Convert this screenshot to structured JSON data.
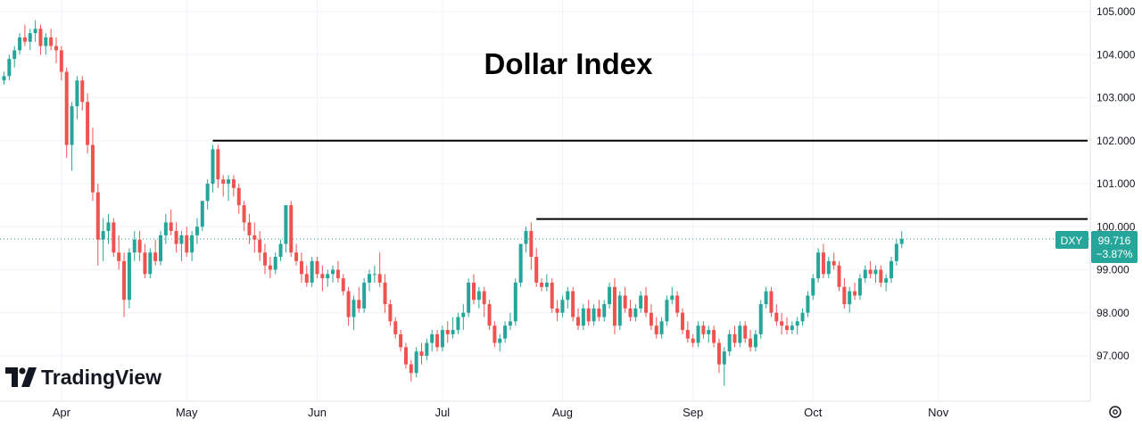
{
  "chart_data": {
    "type": "candlestick",
    "title": "Dollar Index",
    "symbol": "DXY",
    "last_price": "99.716",
    "change_percent": "−3.87%",
    "watermark": "TradingView",
    "y_ticks": [
      "105.000",
      "104.000",
      "103.000",
      "102.000",
      "101.000",
      "100.000",
      "99.000",
      "98.000",
      "97.000"
    ],
    "ylim": [
      96.2,
      105.3
    ],
    "x_tick_labels": [
      "Apr",
      "May",
      "Jun",
      "Jul",
      "Aug",
      "Sep",
      "Oct",
      "Nov"
    ],
    "x_tick_index": [
      11,
      35,
      60,
      84,
      107,
      132,
      155,
      179
    ],
    "horizontal_lines": [
      {
        "y": 102.0,
        "from_index": 40
      },
      {
        "y": 100.18,
        "from_index": 102
      }
    ],
    "candles": [
      [
        103.4,
        103.6,
        103.3,
        103.5
      ],
      [
        103.5,
        104.0,
        103.4,
        103.9
      ],
      [
        103.9,
        104.2,
        103.7,
        104.1
      ],
      [
        104.1,
        104.5,
        104.0,
        104.4
      ],
      [
        104.4,
        104.7,
        104.2,
        104.3
      ],
      [
        104.3,
        104.6,
        104.1,
        104.5
      ],
      [
        104.5,
        104.8,
        104.3,
        104.6
      ],
      [
        104.6,
        104.7,
        104.0,
        104.2
      ],
      [
        104.2,
        104.5,
        104.0,
        104.4
      ],
      [
        104.4,
        104.6,
        104.1,
        104.2
      ],
      [
        104.2,
        104.4,
        103.8,
        104.1
      ],
      [
        104.1,
        104.2,
        103.4,
        103.6
      ],
      [
        103.6,
        103.7,
        101.6,
        101.9
      ],
      [
        101.9,
        102.9,
        101.3,
        102.8
      ],
      [
        102.8,
        103.5,
        102.5,
        103.4
      ],
      [
        103.4,
        103.5,
        102.7,
        102.9
      ],
      [
        102.9,
        103.1,
        101.7,
        101.9
      ],
      [
        101.9,
        102.3,
        100.6,
        100.8
      ],
      [
        100.8,
        101.0,
        99.1,
        99.7
      ],
      [
        99.7,
        100.2,
        99.2,
        99.9
      ],
      [
        99.9,
        100.3,
        99.6,
        100.1
      ],
      [
        100.1,
        100.2,
        99.3,
        99.4
      ],
      [
        99.4,
        99.8,
        99.0,
        99.2
      ],
      [
        99.2,
        99.4,
        97.9,
        98.3
      ],
      [
        98.3,
        99.5,
        98.1,
        99.4
      ],
      [
        99.4,
        99.9,
        99.2,
        99.7
      ],
      [
        99.7,
        99.9,
        99.2,
        99.4
      ],
      [
        99.4,
        99.6,
        98.8,
        98.9
      ],
      [
        98.9,
        99.5,
        98.8,
        99.4
      ],
      [
        99.4,
        99.7,
        99.1,
        99.2
      ],
      [
        99.2,
        99.9,
        99.1,
        99.8
      ],
      [
        99.8,
        100.3,
        99.6,
        100.1
      ],
      [
        100.1,
        100.4,
        99.8,
        99.9
      ],
      [
        99.9,
        100.1,
        99.4,
        99.6
      ],
      [
        99.6,
        99.9,
        99.2,
        99.8
      ],
      [
        99.8,
        100.0,
        99.3,
        99.4
      ],
      [
        99.4,
        99.9,
        99.2,
        99.8
      ],
      [
        99.8,
        100.2,
        99.6,
        100.0
      ],
      [
        100.0,
        100.6,
        99.9,
        100.6
      ],
      [
        100.6,
        101.1,
        100.4,
        101.0
      ],
      [
        101.0,
        101.9,
        100.8,
        101.8
      ],
      [
        101.8,
        101.9,
        100.9,
        101.1
      ],
      [
        101.1,
        101.2,
        100.7,
        101.0
      ],
      [
        101.0,
        101.2,
        100.6,
        101.1
      ],
      [
        101.1,
        101.2,
        100.7,
        100.9
      ],
      [
        100.9,
        101.0,
        100.3,
        100.5
      ],
      [
        100.5,
        100.6,
        99.9,
        100.1
      ],
      [
        100.1,
        100.3,
        99.6,
        99.8
      ],
      [
        99.8,
        100.1,
        99.4,
        99.7
      ],
      [
        99.7,
        99.9,
        99.2,
        99.4
      ],
      [
        99.4,
        99.6,
        98.9,
        99.1
      ],
      [
        99.1,
        99.3,
        98.8,
        99.0
      ],
      [
        99.0,
        99.4,
        98.9,
        99.3
      ],
      [
        99.3,
        99.7,
        99.2,
        99.6
      ],
      [
        99.6,
        100.5,
        99.4,
        100.5
      ],
      [
        100.5,
        100.6,
        99.3,
        99.4
      ],
      [
        99.4,
        99.6,
        99.1,
        99.2
      ],
      [
        99.2,
        99.4,
        98.7,
        98.9
      ],
      [
        98.9,
        99.1,
        98.6,
        98.7
      ],
      [
        98.7,
        99.3,
        98.6,
        99.2
      ],
      [
        99.2,
        99.3,
        98.8,
        98.9
      ],
      [
        98.9,
        99.1,
        98.5,
        98.8
      ],
      [
        98.8,
        99.0,
        98.6,
        98.9
      ],
      [
        98.9,
        99.1,
        98.7,
        99.0
      ],
      [
        99.0,
        99.2,
        98.7,
        98.8
      ],
      [
        98.8,
        98.9,
        98.4,
        98.5
      ],
      [
        98.5,
        98.6,
        97.7,
        97.9
      ],
      [
        97.9,
        98.4,
        97.6,
        98.3
      ],
      [
        98.3,
        98.6,
        98.0,
        98.1
      ],
      [
        98.1,
        98.8,
        98.0,
        98.7
      ],
      [
        98.7,
        99.0,
        98.5,
        98.9
      ],
      [
        98.9,
        99.1,
        98.7,
        98.9
      ],
      [
        98.9,
        99.4,
        98.6,
        98.7
      ],
      [
        98.7,
        98.9,
        98.0,
        98.2
      ],
      [
        98.2,
        98.3,
        97.7,
        97.8
      ],
      [
        97.8,
        97.9,
        97.4,
        97.5
      ],
      [
        97.5,
        97.6,
        97.1,
        97.2
      ],
      [
        97.2,
        97.3,
        96.7,
        96.8
      ],
      [
        96.8,
        96.9,
        96.4,
        96.6
      ],
      [
        96.6,
        97.2,
        96.5,
        97.1
      ],
      [
        97.1,
        97.3,
        96.8,
        97.0
      ],
      [
        97.0,
        97.4,
        96.9,
        97.3
      ],
      [
        97.3,
        97.6,
        97.1,
        97.5
      ],
      [
        97.5,
        97.6,
        97.1,
        97.2
      ],
      [
        97.2,
        97.7,
        97.1,
        97.6
      ],
      [
        97.6,
        97.8,
        97.3,
        97.5
      ],
      [
        97.5,
        97.9,
        97.4,
        97.6
      ],
      [
        97.6,
        98.0,
        97.5,
        97.9
      ],
      [
        97.9,
        98.2,
        97.6,
        98.0
      ],
      [
        98.0,
        98.8,
        97.9,
        98.7
      ],
      [
        98.7,
        98.9,
        98.2,
        98.3
      ],
      [
        98.3,
        98.6,
        98.1,
        98.5
      ],
      [
        98.5,
        98.6,
        97.9,
        98.2
      ],
      [
        98.2,
        98.3,
        97.6,
        97.7
      ],
      [
        97.7,
        97.8,
        97.2,
        97.3
      ],
      [
        97.3,
        97.5,
        97.1,
        97.4
      ],
      [
        97.4,
        97.8,
        97.3,
        97.7
      ],
      [
        97.7,
        98.0,
        97.6,
        97.8
      ],
      [
        97.8,
        98.8,
        97.7,
        98.7
      ],
      [
        98.7,
        99.6,
        98.6,
        99.6
      ],
      [
        99.6,
        100.0,
        99.4,
        99.9
      ],
      [
        99.9,
        100.1,
        99.0,
        99.3
      ],
      [
        99.3,
        99.5,
        98.6,
        98.7
      ],
      [
        98.7,
        98.8,
        98.5,
        98.6
      ],
      [
        98.6,
        98.9,
        98.5,
        98.7
      ],
      [
        98.7,
        98.8,
        98.0,
        98.1
      ],
      [
        98.1,
        98.3,
        97.8,
        98.0
      ],
      [
        98.0,
        98.4,
        97.9,
        98.3
      ],
      [
        98.3,
        98.6,
        98.1,
        98.5
      ],
      [
        98.5,
        98.6,
        97.8,
        97.9
      ],
      [
        97.9,
        98.1,
        97.6,
        97.7
      ],
      [
        97.7,
        98.2,
        97.6,
        98.1
      ],
      [
        98.1,
        98.3,
        97.7,
        97.8
      ],
      [
        97.8,
        98.2,
        97.7,
        98.1
      ],
      [
        98.1,
        98.3,
        97.8,
        97.9
      ],
      [
        97.9,
        98.3,
        97.8,
        98.2
      ],
      [
        98.2,
        98.7,
        98.1,
        98.6
      ],
      [
        98.6,
        98.8,
        97.5,
        97.7
      ],
      [
        97.7,
        98.5,
        97.6,
        98.4
      ],
      [
        98.4,
        98.6,
        98.0,
        98.1
      ],
      [
        98.1,
        98.3,
        97.8,
        97.9
      ],
      [
        97.9,
        98.2,
        97.8,
        98.1
      ],
      [
        98.1,
        98.5,
        98.0,
        98.4
      ],
      [
        98.4,
        98.6,
        97.9,
        98.0
      ],
      [
        98.0,
        98.2,
        97.6,
        97.7
      ],
      [
        97.7,
        97.9,
        97.4,
        97.5
      ],
      [
        97.5,
        97.9,
        97.4,
        97.8
      ],
      [
        97.8,
        98.4,
        97.7,
        98.3
      ],
      [
        98.3,
        98.6,
        98.2,
        98.4
      ],
      [
        98.4,
        98.5,
        97.9,
        98.0
      ],
      [
        98.0,
        98.1,
        97.5,
        97.6
      ],
      [
        97.6,
        97.8,
        97.3,
        97.4
      ],
      [
        97.4,
        97.5,
        97.2,
        97.3
      ],
      [
        97.3,
        97.8,
        97.2,
        97.7
      ],
      [
        97.7,
        97.8,
        97.4,
        97.5
      ],
      [
        97.5,
        97.7,
        97.3,
        97.6
      ],
      [
        97.6,
        97.7,
        97.2,
        97.3
      ],
      [
        97.3,
        97.4,
        96.6,
        96.8
      ],
      [
        96.8,
        97.2,
        96.3,
        97.1
      ],
      [
        97.1,
        97.6,
        97.0,
        97.5
      ],
      [
        97.5,
        97.7,
        97.2,
        97.3
      ],
      [
        97.3,
        97.8,
        97.2,
        97.7
      ],
      [
        97.7,
        97.8,
        97.3,
        97.4
      ],
      [
        97.4,
        97.6,
        97.1,
        97.2
      ],
      [
        97.2,
        97.6,
        97.1,
        97.5
      ],
      [
        97.5,
        98.3,
        97.4,
        98.2
      ],
      [
        98.2,
        98.6,
        98.1,
        98.5
      ],
      [
        98.5,
        98.6,
        97.9,
        98.0
      ],
      [
        98.0,
        98.2,
        97.7,
        97.8
      ],
      [
        97.8,
        98.0,
        97.5,
        97.7
      ],
      [
        97.7,
        97.9,
        97.5,
        97.6
      ],
      [
        97.6,
        97.8,
        97.5,
        97.7
      ],
      [
        97.7,
        97.9,
        97.5,
        97.8
      ],
      [
        97.8,
        98.1,
        97.7,
        98.0
      ],
      [
        98.0,
        98.5,
        97.9,
        98.4
      ],
      [
        98.4,
        98.9,
        98.3,
        98.8
      ],
      [
        98.8,
        99.5,
        98.7,
        99.4
      ],
      [
        99.4,
        99.6,
        98.8,
        98.9
      ],
      [
        98.9,
        99.3,
        98.8,
        99.2
      ],
      [
        99.2,
        99.4,
        99.0,
        99.1
      ],
      [
        99.1,
        99.2,
        98.5,
        98.6
      ],
      [
        98.6,
        98.8,
        98.1,
        98.2
      ],
      [
        98.2,
        98.6,
        98.0,
        98.5
      ],
      [
        98.5,
        98.7,
        98.3,
        98.4
      ],
      [
        98.4,
        98.9,
        98.3,
        98.8
      ],
      [
        98.8,
        99.1,
        98.7,
        99.0
      ],
      [
        99.0,
        99.2,
        98.8,
        98.9
      ],
      [
        98.9,
        99.1,
        98.7,
        99.0
      ],
      [
        99.0,
        99.1,
        98.6,
        98.7
      ],
      [
        98.7,
        98.9,
        98.5,
        98.8
      ],
      [
        98.8,
        99.3,
        98.7,
        99.2
      ],
      [
        99.2,
        99.7,
        99.1,
        99.6
      ],
      [
        99.6,
        99.9,
        99.5,
        99.716
      ]
    ]
  },
  "ui": {
    "settings_icon": "gear-icon"
  },
  "colors": {
    "up": "#26a69a",
    "down": "#ef5350",
    "level_line": "#000000",
    "grid": "#f0f3fa",
    "price_tag_bg": "#26a69a",
    "axis_text": "#131722"
  }
}
